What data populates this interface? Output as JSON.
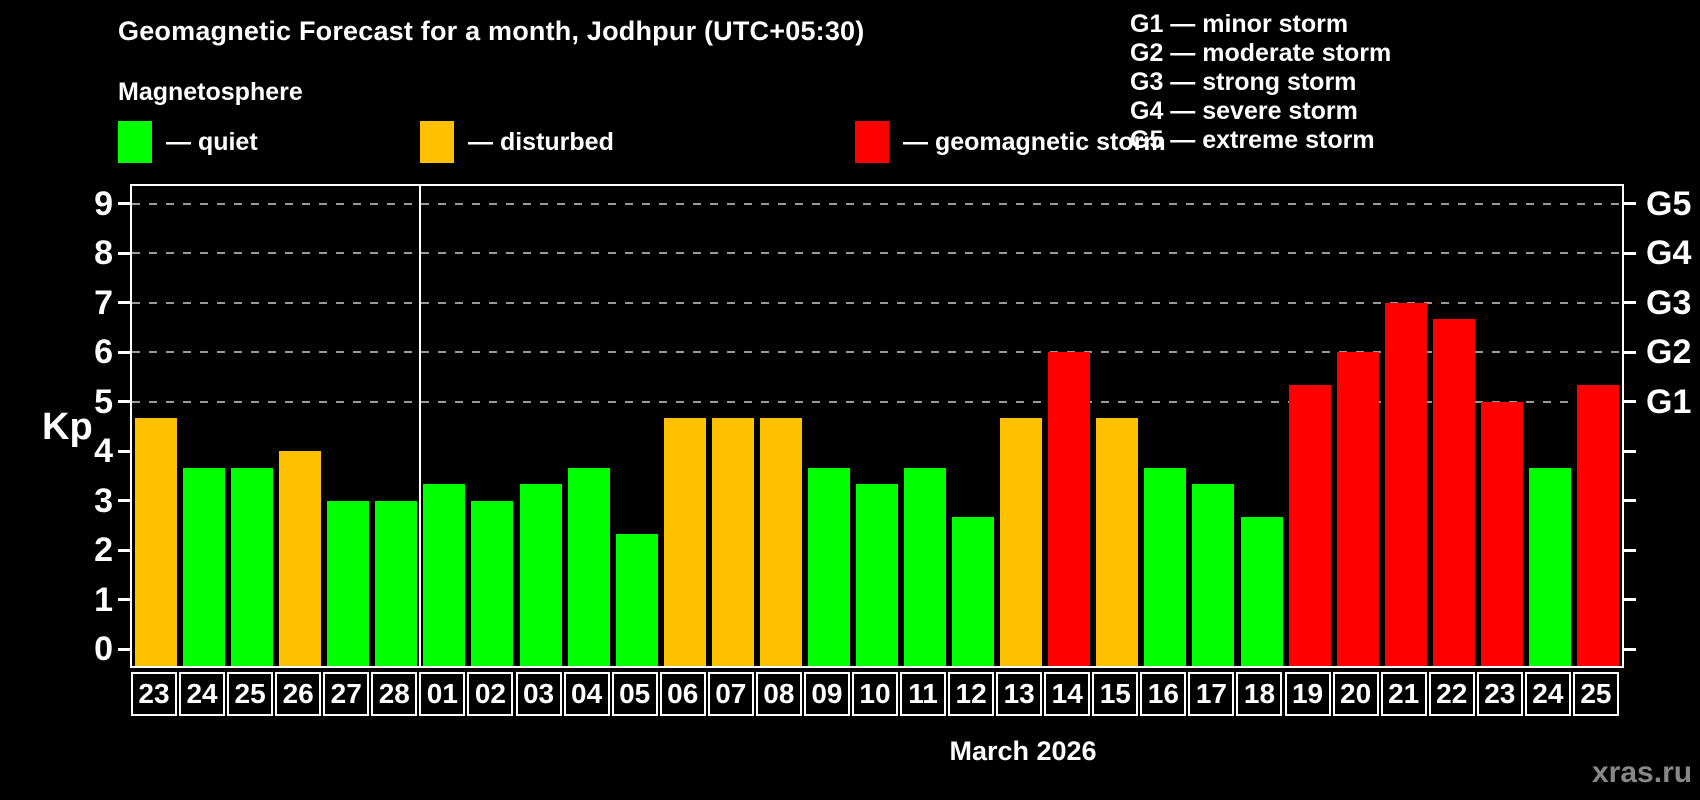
{
  "header": {
    "title": "Geomagnetic Forecast for a month, Jodhpur (UTC+05:30)",
    "subtitle": "Magnetosphere"
  },
  "legend": {
    "dash": "—",
    "items": [
      {
        "label": "quiet",
        "status": "quiet",
        "color": "#00ff00"
      },
      {
        "label": "disturbed",
        "status": "disturbed",
        "color": "#ffc000"
      },
      {
        "label": "geomagnetic storm",
        "status": "storm",
        "color": "#ff0000"
      }
    ]
  },
  "storm_scale_legend": [
    {
      "code": "G1",
      "label": "minor storm"
    },
    {
      "code": "G2",
      "label": "moderate storm"
    },
    {
      "code": "G3",
      "label": "strong storm"
    },
    {
      "code": "G4",
      "label": "severe storm"
    },
    {
      "code": "G5",
      "label": "extreme storm"
    }
  ],
  "chart_data": {
    "type": "bar",
    "title": "Geomagnetic Forecast for a month, Jodhpur (UTC+05:30)",
    "ylabel": "Kp",
    "xlabel": "March 2026",
    "ylim": [
      -0.34,
      9.36
    ],
    "yticks": [
      0,
      1,
      2,
      3,
      4,
      5,
      6,
      7,
      8,
      9
    ],
    "gridline_values": [
      5,
      6,
      7,
      8,
      9
    ],
    "grid": true,
    "right_axis_labels": [
      {
        "value": 5,
        "label": "G1"
      },
      {
        "value": 6,
        "label": "G2"
      },
      {
        "value": 7,
        "label": "G3"
      },
      {
        "value": 8,
        "label": "G4"
      },
      {
        "value": 9,
        "label": "G5"
      }
    ],
    "categories": [
      "23",
      "24",
      "25",
      "26",
      "27",
      "28",
      "01",
      "02",
      "03",
      "04",
      "05",
      "06",
      "07",
      "08",
      "09",
      "10",
      "11",
      "12",
      "13",
      "14",
      "15",
      "16",
      "17",
      "18",
      "19",
      "20",
      "21",
      "22",
      "23",
      "24",
      "25"
    ],
    "values": [
      4.67,
      3.67,
      3.67,
      4.0,
      3.0,
      3.0,
      3.33,
      3.0,
      3.33,
      3.67,
      2.33,
      4.67,
      4.67,
      4.67,
      3.67,
      3.33,
      3.67,
      2.67,
      4.67,
      6.0,
      4.67,
      3.67,
      3.33,
      2.67,
      5.33,
      6.0,
      7.0,
      6.67,
      5.0,
      3.67,
      5.33
    ],
    "statuses": [
      "disturbed",
      "quiet",
      "quiet",
      "disturbed",
      "quiet",
      "quiet",
      "quiet",
      "quiet",
      "quiet",
      "quiet",
      "quiet",
      "disturbed",
      "disturbed",
      "disturbed",
      "quiet",
      "quiet",
      "quiet",
      "quiet",
      "disturbed",
      "storm",
      "disturbed",
      "quiet",
      "quiet",
      "quiet",
      "storm",
      "storm",
      "storm",
      "storm",
      "storm",
      "quiet",
      "storm"
    ],
    "status_colors": {
      "quiet": "#00ff00",
      "disturbed": "#ffc000",
      "storm": "#ff0000"
    },
    "month_separator_after_index": 5
  },
  "watermark": "xras.ru"
}
